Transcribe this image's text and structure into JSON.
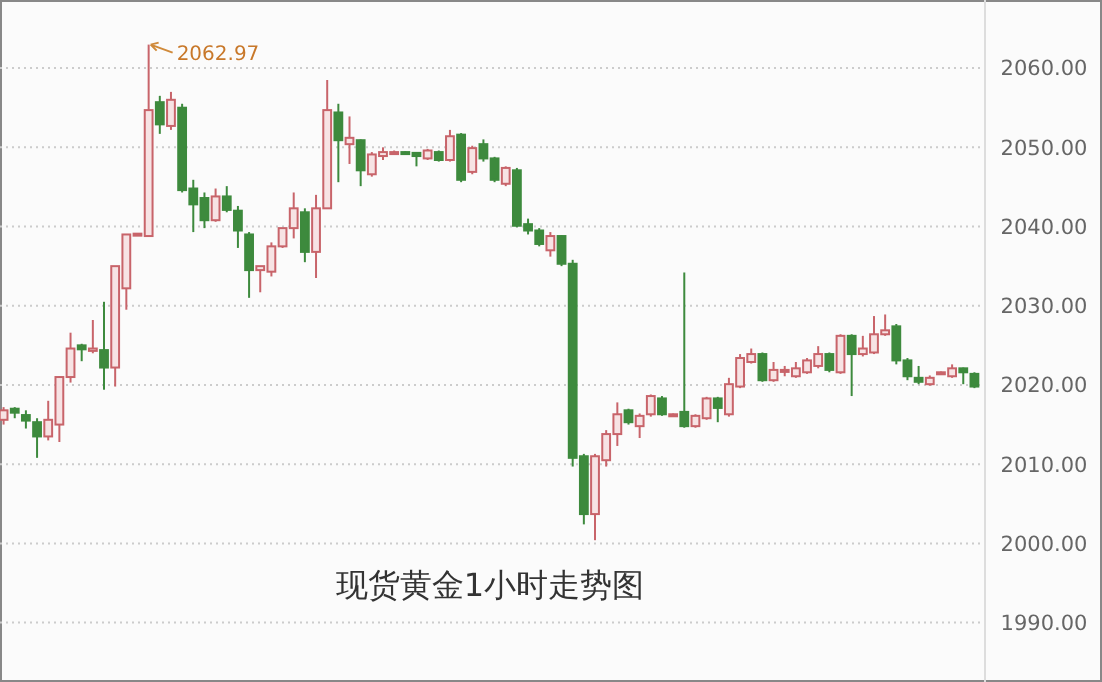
{
  "chart_data": {
    "type": "candlestick",
    "title": "现货黄金1小时走势图",
    "categories": [
      null,
      null,
      null,
      null,
      null,
      null,
      null,
      null,
      null,
      null,
      null,
      null,
      null,
      null,
      null,
      null,
      null,
      null,
      null,
      null,
      null,
      null,
      null,
      null,
      null,
      null,
      null,
      null,
      null,
      null,
      null,
      null,
      null,
      null,
      null,
      null,
      null,
      null,
      null,
      null,
      null,
      null,
      null,
      null,
      null,
      null,
      null,
      null,
      null,
      null,
      null,
      null,
      null,
      null,
      null,
      null,
      null,
      null,
      null,
      null,
      null,
      null,
      null,
      null,
      null,
      null,
      null,
      null,
      null,
      null,
      null,
      null,
      null,
      null,
      null,
      null,
      null,
      null,
      null,
      null,
      null,
      null,
      null,
      null,
      null,
      null,
      null,
      null
    ],
    "ohlc": [
      [
        2015.6,
        2017.2,
        2015,
        2016.8
      ],
      [
        2017,
        2017.2,
        2015.8,
        2016.5
      ],
      [
        2016.2,
        2016.8,
        2014.5,
        2015.5
      ],
      [
        2015.3,
        2015.8,
        2010.8,
        2013.5
      ],
      [
        2013.5,
        2018,
        2013,
        2015.6
      ],
      [
        2015,
        2021.1,
        2012.8,
        2021
      ],
      [
        2021,
        2026.6,
        2020.3,
        2024.6
      ],
      [
        2025,
        2025.2,
        2023,
        2024.5
      ],
      [
        2024.3,
        2028.2,
        2024,
        2024.6
      ],
      [
        2024.4,
        2030.5,
        2019.4,
        2022.2
      ],
      [
        2022.2,
        2035,
        2019.8,
        2035
      ],
      [
        2032.2,
        2039,
        2029.5,
        2039
      ],
      [
        2039,
        2039.1,
        2039,
        2039.1
      ],
      [
        2038.8,
        2062.97,
        2038.8,
        2054.7
      ],
      [
        2055.7,
        2056.5,
        2051.7,
        2052.9
      ],
      [
        2052.7,
        2057,
        2052.2,
        2056
      ],
      [
        2055,
        2055.5,
        2044.3,
        2044.6
      ],
      [
        2044.8,
        2045.9,
        2039.3,
        2042.8
      ],
      [
        2043.6,
        2044.3,
        2039.8,
        2040.8
      ],
      [
        2040.8,
        2044.8,
        2040.6,
        2043.8
      ],
      [
        2043.8,
        2045.1,
        2041.8,
        2042.1
      ],
      [
        2042,
        2042.6,
        2037.3,
        2039.5
      ],
      [
        2039,
        2039.3,
        2031,
        2034.5
      ],
      [
        2034.5,
        2035,
        2031.7,
        2035
      ],
      [
        2034.3,
        2038,
        2033.7,
        2037.5
      ],
      [
        2037.5,
        2039.8,
        2037.3,
        2039.8
      ],
      [
        2039.8,
        2044.3,
        2038.5,
        2042.3
      ],
      [
        2041.8,
        2042.3,
        2035.5,
        2036.8
      ],
      [
        2036.8,
        2044,
        2033.5,
        2042.3
      ],
      [
        2042.3,
        2058.5,
        2042.3,
        2054.7
      ],
      [
        2054.4,
        2055.5,
        2045.6,
        2050.9
      ],
      [
        2050.4,
        2053.9,
        2047.9,
        2051.2
      ],
      [
        2050.9,
        2051,
        2045.1,
        2047.1
      ],
      [
        2046.6,
        2049.4,
        2046.3,
        2049.1
      ],
      [
        2048.9,
        2050,
        2048.4,
        2049.4
      ],
      [
        2049.4,
        2049.6,
        2049.2,
        2049.4
      ],
      [
        2049.4,
        2049.5,
        2049.2,
        2049.3
      ],
      [
        2049.3,
        2049.4,
        2047.6,
        2048.9
      ],
      [
        2048.6,
        2049.8,
        2048.4,
        2049.6
      ],
      [
        2049.4,
        2049.6,
        2048.2,
        2048.4
      ],
      [
        2048.4,
        2052.2,
        2048.2,
        2051.4
      ],
      [
        2051.6,
        2051.8,
        2045.6,
        2045.9
      ],
      [
        2046.9,
        2050.2,
        2046.6,
        2049.9
      ],
      [
        2050.4,
        2051,
        2048.2,
        2048.6
      ],
      [
        2048.6,
        2048.8,
        2045.6,
        2045.9
      ],
      [
        2045.4,
        2047.6,
        2045.1,
        2047.4
      ],
      [
        2047.1,
        2047.4,
        2039.9,
        2040.1
      ],
      [
        2040.3,
        2041,
        2039,
        2039.5
      ],
      [
        2039.5,
        2039.8,
        2037.5,
        2037.8
      ],
      [
        2037,
        2039.3,
        2036.2,
        2038.8
      ],
      [
        2038.8,
        2038.9,
        2035,
        2035.3
      ],
      [
        2035.3,
        2035.8,
        2009.7,
        2010.8
      ],
      [
        2011,
        2011.3,
        2002.4,
        2003.7
      ],
      [
        2003.7,
        2011.3,
        2000.4,
        2011
      ],
      [
        2010.5,
        2014.3,
        2009.7,
        2013.8
      ],
      [
        2013.8,
        2017.8,
        2012.3,
        2016.3
      ],
      [
        2016.8,
        2017,
        2015,
        2015.3
      ],
      [
        2014.8,
        2016.4,
        2013.3,
        2016.1
      ],
      [
        2016.3,
        2018.8,
        2016,
        2018.6
      ],
      [
        2018.3,
        2018.6,
        2016.1,
        2016.3
      ],
      [
        2016.3,
        2016.4,
        2016.2,
        2016.3
      ],
      [
        2016.6,
        2034.2,
        2014.6,
        2014.8
      ],
      [
        2014.8,
        2016.3,
        2014.6,
        2016.1
      ],
      [
        2015.8,
        2018.5,
        2015.6,
        2018.3
      ],
      [
        2018.3,
        2018.5,
        2015.3,
        2017.1
      ],
      [
        2016.3,
        2020.9,
        2016,
        2020.1
      ],
      [
        2019.8,
        2023.9,
        2019.6,
        2023.4
      ],
      [
        2022.9,
        2024.6,
        2022.7,
        2023.9
      ],
      [
        2023.9,
        2024.1,
        2020.4,
        2020.6
      ],
      [
        2020.6,
        2022.9,
        2020.4,
        2021.9
      ],
      [
        2021.9,
        2022.4,
        2021.1,
        2021.9
      ],
      [
        2021.1,
        2022.9,
        2020.9,
        2022.1
      ],
      [
        2021.6,
        2023.4,
        2021.4,
        2023.1
      ],
      [
        2022.4,
        2024.9,
        2022.1,
        2023.9
      ],
      [
        2023.9,
        2024.1,
        2021.6,
        2021.9
      ],
      [
        2021.6,
        2026.4,
        2021.4,
        2026.2
      ],
      [
        2026.2,
        2026.4,
        2018.6,
        2023.9
      ],
      [
        2023.9,
        2026.2,
        2023.6,
        2024.6
      ],
      [
        2024.1,
        2028.7,
        2023.9,
        2026.4
      ],
      [
        2026.4,
        2028.9,
        2026.2,
        2026.9
      ],
      [
        2027.4,
        2027.7,
        2022.6,
        2023.1
      ],
      [
        2023.1,
        2023.4,
        2020.6,
        2021.1
      ],
      [
        2020.9,
        2022.4,
        2020.1,
        2020.4
      ],
      [
        2020.1,
        2021.2,
        2019.9,
        2020.9
      ],
      [
        2021.6,
        2021.7,
        2021.5,
        2021.6
      ],
      [
        2021.1,
        2022.6,
        2020.9,
        2022.1
      ],
      [
        2022.1,
        2022.2,
        2020.1,
        2021.6
      ],
      [
        2021.4,
        2021.6,
        2019.6,
        2019.8
      ]
    ],
    "ylim": [
      1982.5,
      2068.6
    ],
    "yticks": [
      {
        "value": 1990,
        "label": "1990.00"
      },
      {
        "value": 2000,
        "label": "2000.00"
      },
      {
        "value": 2010,
        "label": "2010.00"
      },
      {
        "value": 2020,
        "label": "2020.00"
      },
      {
        "value": 2030,
        "label": "2030.00"
      },
      {
        "value": 2040,
        "label": "2040.00"
      },
      {
        "value": 2050,
        "label": "2050.00"
      },
      {
        "value": 2060,
        "label": "2060.00"
      }
    ],
    "grid": "y",
    "annotations": [
      "2062.97"
    ]
  }
}
